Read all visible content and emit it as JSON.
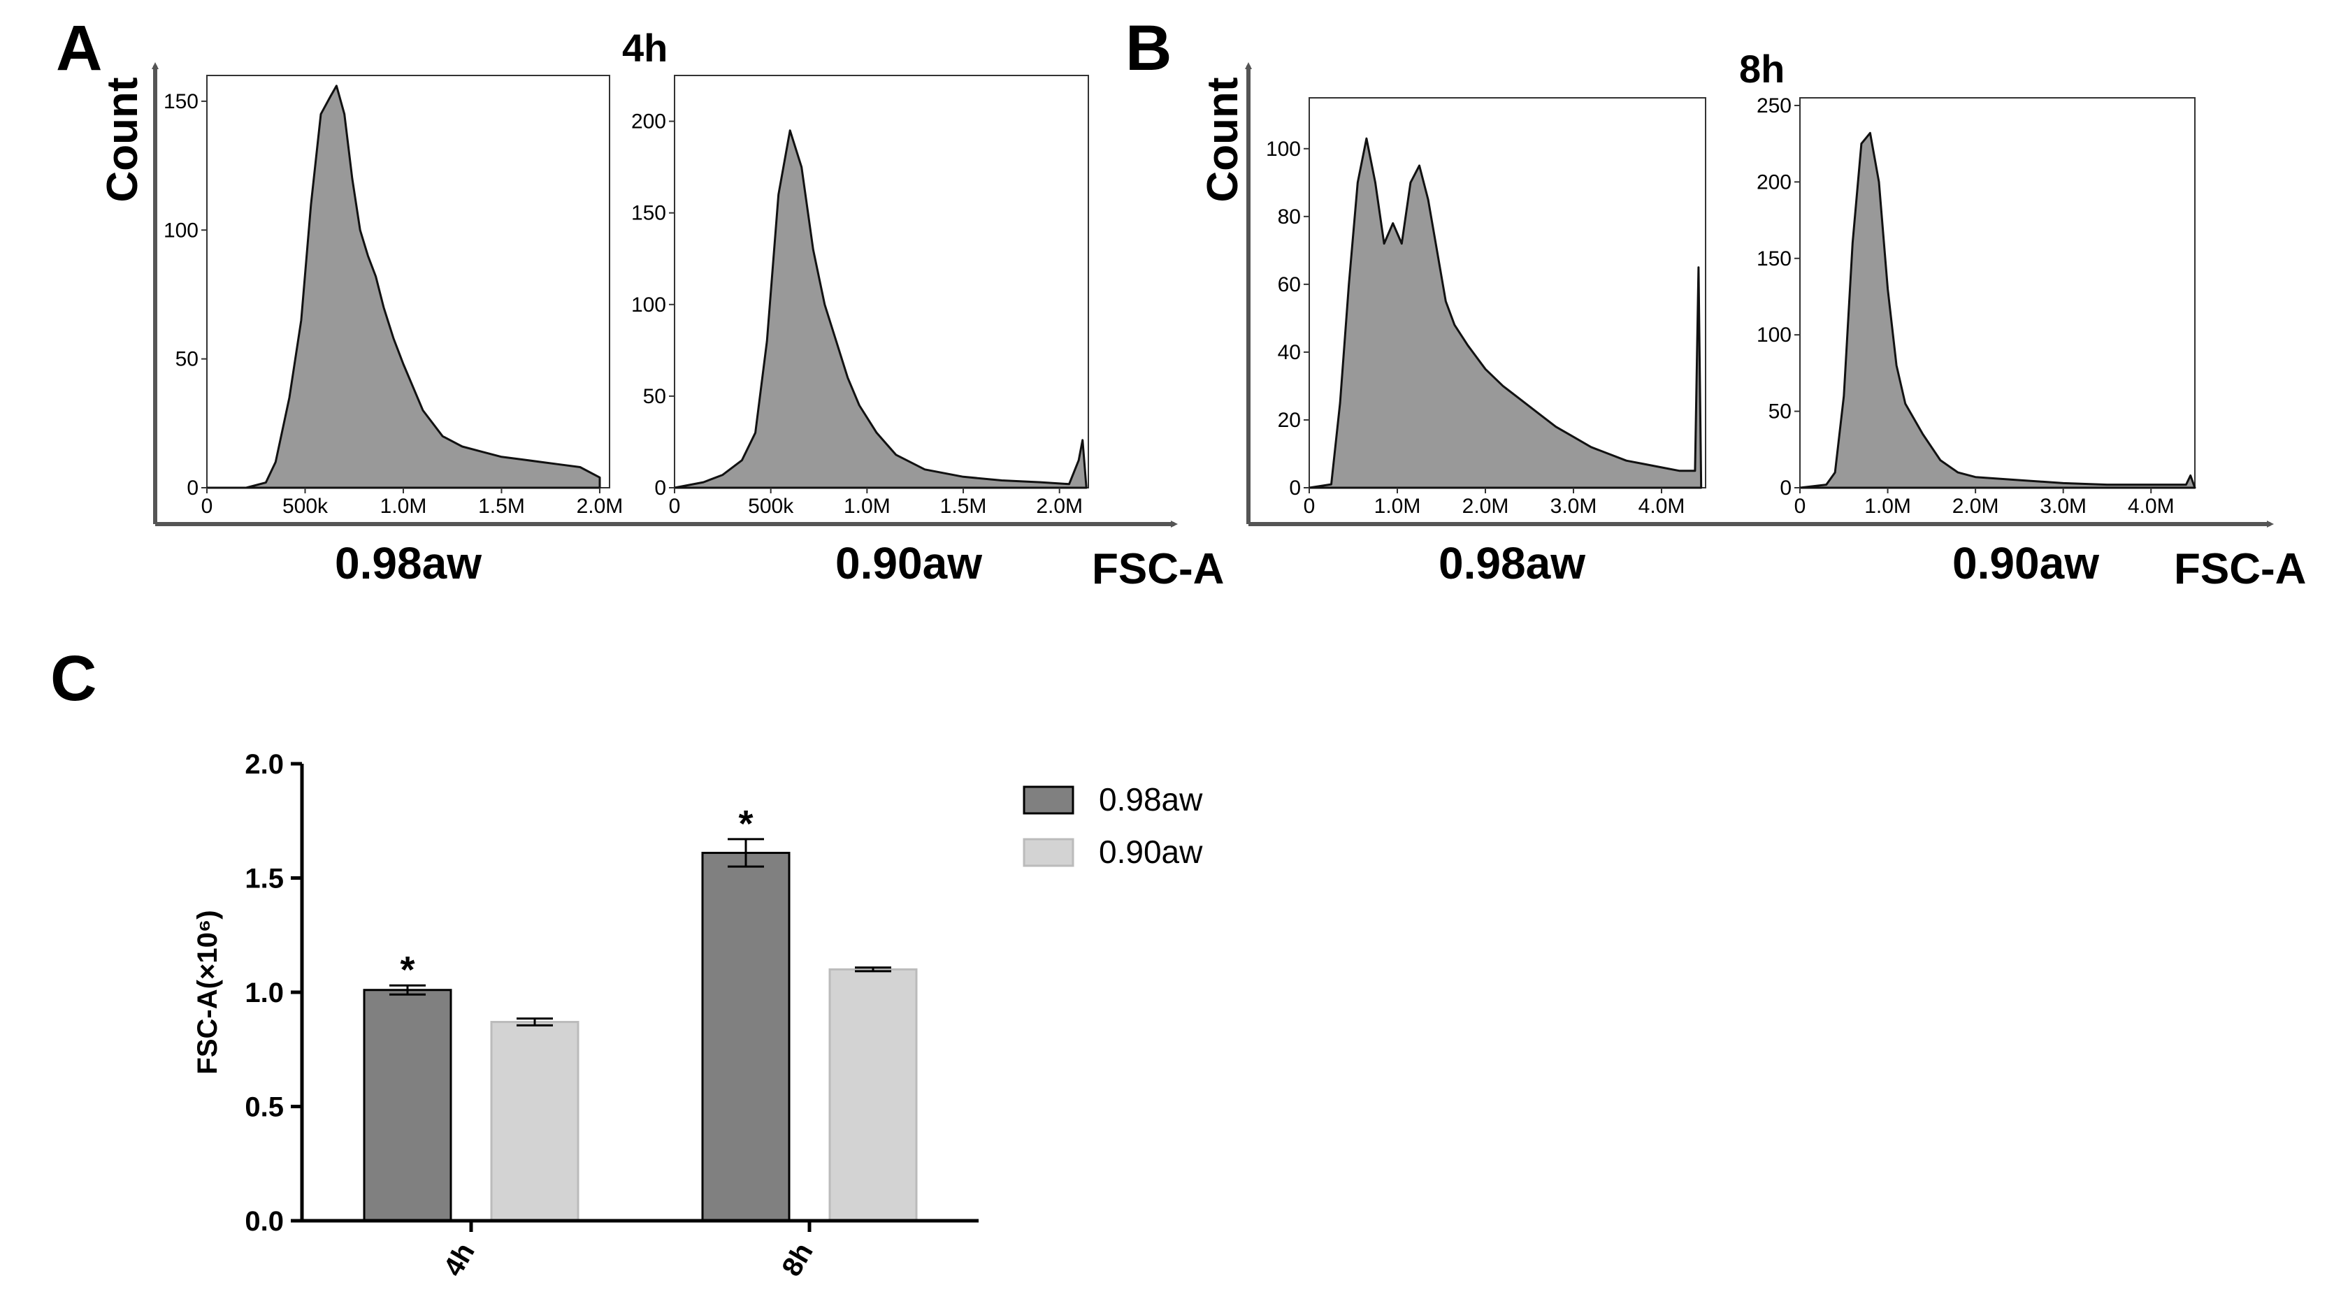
{
  "panels": {
    "A": {
      "letter": "A",
      "timepoint": "4h",
      "y_axis_label": "Count",
      "x_axis_label": "FSC-A"
    },
    "B": {
      "letter": "B",
      "timepoint": "8h",
      "y_axis_label": "Count",
      "x_axis_label": "FSC-A"
    },
    "C": {
      "letter": "C"
    }
  },
  "chart_data": [
    {
      "id": "A-left",
      "type": "area",
      "panel": "A",
      "timepoint": "4h",
      "group_label": "0.98aw",
      "xlim": [
        0,
        2050000
      ],
      "ylim": [
        0,
        160
      ],
      "x_ticks": [
        0,
        500000,
        1000000,
        1500000,
        2000000
      ],
      "x_tick_labels": [
        "0",
        "500k",
        "1.0M",
        "1.5M",
        "2.0M"
      ],
      "y_ticks": [
        0,
        50,
        100,
        150
      ],
      "y_tick_labels": [
        "0",
        "50",
        "100",
        "150"
      ],
      "x": [
        0,
        200000,
        300000,
        350000,
        420000,
        480000,
        530000,
        580000,
        630000,
        660000,
        700000,
        740000,
        780000,
        820000,
        860000,
        900000,
        950000,
        1000000,
        1100000,
        1200000,
        1300000,
        1400000,
        1500000,
        1600000,
        1700000,
        1800000,
        1900000,
        2000000
      ],
      "y": [
        0,
        0,
        2,
        10,
        35,
        65,
        110,
        145,
        152,
        156,
        145,
        120,
        100,
        90,
        82,
        70,
        58,
        48,
        30,
        20,
        16,
        14,
        12,
        11,
        10,
        9,
        8,
        4
      ]
    },
    {
      "id": "A-right",
      "type": "area",
      "panel": "A",
      "timepoint": "4h",
      "group_label": "0.90aw",
      "xlim": [
        0,
        2150000
      ],
      "ylim": [
        0,
        225
      ],
      "x_ticks": [
        0,
        500000,
        1000000,
        1500000,
        2000000
      ],
      "x_tick_labels": [
        "0",
        "500k",
        "1.0M",
        "1.5M",
        "2.0M"
      ],
      "y_ticks": [
        0,
        50,
        100,
        150,
        200
      ],
      "y_tick_labels": [
        "0",
        "50",
        "100",
        "150",
        "200"
      ],
      "x": [
        0,
        150000,
        250000,
        350000,
        420000,
        480000,
        540000,
        600000,
        660000,
        720000,
        780000,
        840000,
        900000,
        960000,
        1050000,
        1150000,
        1300000,
        1500000,
        1700000,
        1900000,
        2050000,
        2100000,
        2120000,
        2140000
      ],
      "y": [
        0,
        3,
        7,
        15,
        30,
        80,
        160,
        195,
        175,
        130,
        100,
        80,
        60,
        45,
        30,
        18,
        10,
        6,
        4,
        3,
        2,
        15,
        26,
        0
      ]
    },
    {
      "id": "B-left",
      "type": "area",
      "panel": "B",
      "timepoint": "8h",
      "group_label": "0.98aw",
      "xlim": [
        0,
        4500000
      ],
      "ylim": [
        0,
        115
      ],
      "x_ticks": [
        0,
        1000000,
        2000000,
        3000000,
        4000000
      ],
      "x_tick_labels": [
        "0",
        "1.0M",
        "2.0M",
        "3.0M",
        "4.0M"
      ],
      "y_ticks": [
        0,
        20,
        40,
        60,
        80,
        100
      ],
      "y_tick_labels": [
        "0",
        "20",
        "40",
        "60",
        "80",
        "100"
      ],
      "x": [
        0,
        250000,
        350000,
        450000,
        550000,
        650000,
        750000,
        850000,
        950000,
        1050000,
        1150000,
        1250000,
        1350000,
        1450000,
        1550000,
        1650000,
        1800000,
        2000000,
        2200000,
        2400000,
        2600000,
        2800000,
        3000000,
        3200000,
        3400000,
        3600000,
        3800000,
        4000000,
        4200000,
        4380000,
        4420000,
        4450000
      ],
      "y": [
        0,
        1,
        25,
        60,
        90,
        103,
        90,
        72,
        78,
        72,
        90,
        95,
        85,
        70,
        55,
        48,
        42,
        35,
        30,
        26,
        22,
        18,
        15,
        12,
        10,
        8,
        7,
        6,
        5,
        5,
        65,
        0
      ]
    },
    {
      "id": "B-right",
      "type": "area",
      "panel": "B",
      "timepoint": "8h",
      "group_label": "0.90aw",
      "xlim": [
        0,
        4500000
      ],
      "ylim": [
        0,
        255
      ],
      "x_ticks": [
        0,
        1000000,
        2000000,
        3000000,
        4000000
      ],
      "x_tick_labels": [
        "0",
        "1.0M",
        "2.0M",
        "3.0M",
        "4.0M"
      ],
      "y_ticks": [
        0,
        50,
        100,
        150,
        200,
        250
      ],
      "y_tick_labels": [
        "0",
        "50",
        "100",
        "150",
        "200",
        "250"
      ],
      "x": [
        0,
        300000,
        400000,
        500000,
        600000,
        700000,
        800000,
        900000,
        1000000,
        1100000,
        1200000,
        1400000,
        1600000,
        1800000,
        2000000,
        2500000,
        3000000,
        3500000,
        4000000,
        4400000,
        4450000,
        4500000
      ],
      "y": [
        0,
        2,
        10,
        60,
        160,
        225,
        232,
        200,
        130,
        80,
        55,
        35,
        18,
        10,
        7,
        5,
        3,
        2,
        2,
        2,
        8,
        0
      ]
    },
    {
      "id": "C",
      "type": "bar",
      "panel": "C",
      "title": "",
      "categories": [
        "4h",
        "8h"
      ],
      "series": [
        {
          "name": "0.98aw",
          "color": "#808080",
          "values": [
            1.01,
            1.61
          ],
          "errors": [
            0.02,
            0.06
          ],
          "significance": [
            "*",
            "*"
          ]
        },
        {
          "name": "0.90aw",
          "color": "#d3d3d3",
          "values": [
            0.87,
            1.1
          ],
          "errors": [
            0.015,
            0.008
          ],
          "significance": [
            "",
            ""
          ]
        }
      ],
      "ylabel": "FSC-A(×10⁶)",
      "ylim": [
        0,
        2.0
      ],
      "y_ticks": [
        0,
        0.5,
        1.0,
        1.5,
        2.0
      ],
      "y_tick_labels": [
        "0.0",
        "0.5",
        "1.0",
        "1.5",
        "2.0"
      ],
      "legend_position": "right"
    }
  ]
}
